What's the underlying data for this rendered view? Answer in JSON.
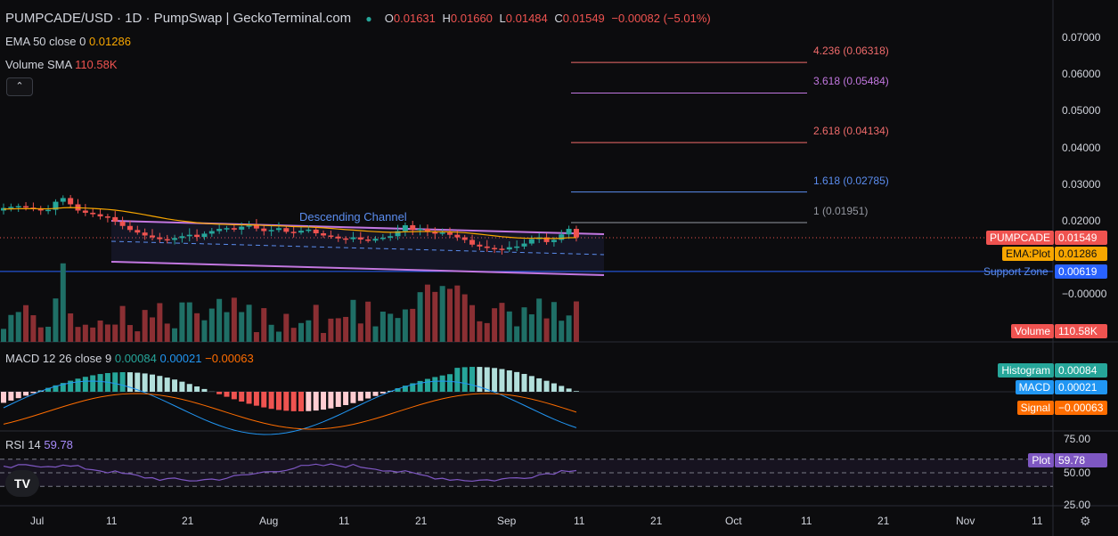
{
  "header": {
    "title": "PUMPCADE/USD · 1D · PumpSwap | GeckoTerminal.com",
    "o_label": "O",
    "o": "0.01631",
    "h_label": "H",
    "h": "0.01660",
    "l_label": "L",
    "l": "0.01484",
    "c_label": "C",
    "c": "0.01549",
    "change": "−0.00082 (−5.01%)"
  },
  "indicators": {
    "ema_label": "EMA 50 close 0",
    "ema_value": "0.01286",
    "volume_label": "Volume SMA",
    "volume_value": "110.58K",
    "collapse_glyph": "⌃",
    "macd_label": "MACD 12 26 close 9",
    "macd_hist": "0.00084",
    "macd_line": "0.00021",
    "macd_signal": "−0.00063",
    "rsi_label": "RSI 14",
    "rsi_value": "59.78"
  },
  "price_axis": {
    "ticks": [
      "0.07000",
      "0.06000",
      "0.05000",
      "0.04000",
      "0.03000",
      "0.02000",
      "0.01000",
      "−0.00000"
    ]
  },
  "rsi_axis": {
    "ticks": [
      "75.00",
      "50.00",
      "25.00"
    ]
  },
  "time_axis": {
    "ticks": [
      "Jul",
      "11",
      "21",
      "Aug",
      "11",
      "21",
      "Sep",
      "11",
      "21",
      "Oct",
      "11",
      "21",
      "Nov",
      "11"
    ]
  },
  "annotations": {
    "channel_label": "Descending Channel",
    "support_label": "Support Zone",
    "support_value": "0.00619",
    "fib_levels": [
      {
        "label": "4.236 (0.06318)",
        "color": "#f06b6b"
      },
      {
        "label": "3.618 (0.05484)",
        "color": "#c277e0"
      },
      {
        "label": "2.618 (0.04134)",
        "color": "#f06b6b"
      },
      {
        "label": "1.618 (0.02785)",
        "color": "#5b8def"
      },
      {
        "label": "1 (0.01951)",
        "color": "#9598a1"
      }
    ]
  },
  "tags": {
    "symbol": "PUMPCADE",
    "symbol_value": "0.01549",
    "ema": "EMA:Plot",
    "ema_value": "0.01286",
    "volume": "Volume",
    "volume_value": "110.58K",
    "histogram": "Histogram",
    "histogram_value": "0.00084",
    "macd": "MACD",
    "macd_value": "0.00021",
    "signal": "Signal",
    "signal_value": "−0.00063",
    "rsi": "Plot",
    "rsi_value": "59.78"
  },
  "logo_text": "TV",
  "settings_icon": "gear-icon",
  "colors": {
    "up": "#26a69a",
    "down": "#ef5350",
    "channel": "#c277e0",
    "ema": "#f7a600",
    "support": "#2962ff",
    "macd": "#2196f3",
    "signal": "#ff6d00",
    "rsi": "#7e57c2"
  },
  "chart_data": {
    "type": "candlestick",
    "price_range": [
      -0.003,
      0.073
    ],
    "fib_values": [
      0.06318,
      0.05484,
      0.04134,
      0.02785,
      0.01951
    ],
    "support_value": 0.00619,
    "last_close": 0.01549,
    "ema_last": 0.01286,
    "rsi_levels": [
      70,
      50,
      30
    ],
    "rsi_last": 59.78,
    "macd_hist_last": 0.00084,
    "macd_last": 0.00021,
    "signal_last": -0.00063,
    "volume_sma_last": "110.58K"
  }
}
